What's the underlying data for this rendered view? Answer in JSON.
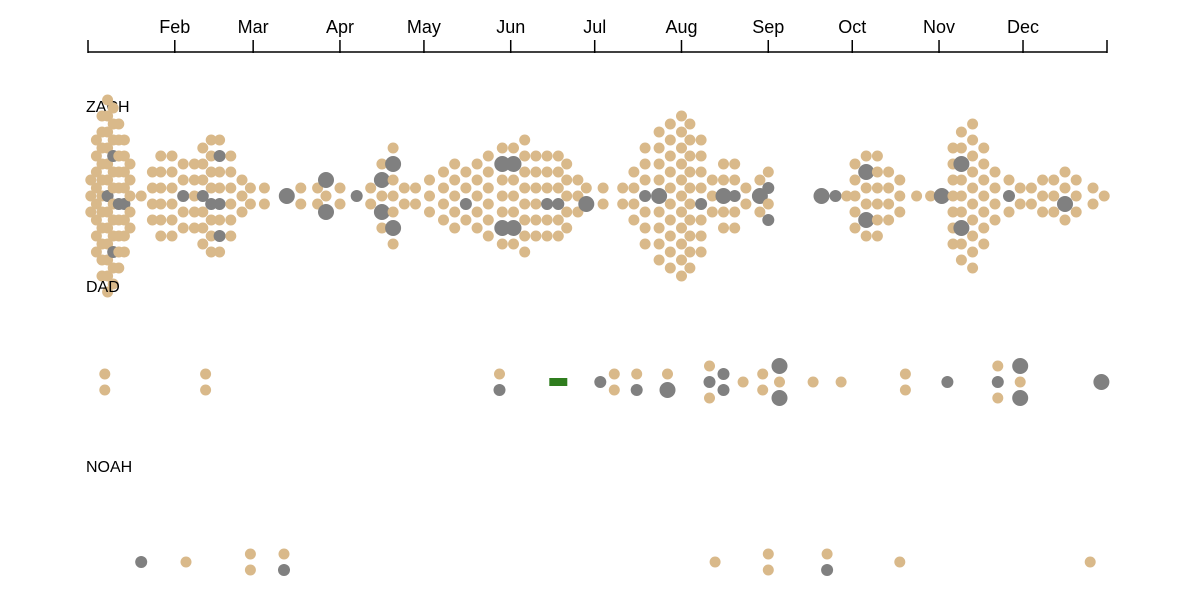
{
  "chart_data": {
    "type": "scatter",
    "x_axis": {
      "range": [
        "2023-01-01",
        "2023-12-31"
      ],
      "ticks": [
        {
          "date": "2023-02-01",
          "label": "Feb"
        },
        {
          "date": "2023-03-01",
          "label": "Mar"
        },
        {
          "date": "2023-04-01",
          "label": "Apr"
        },
        {
          "date": "2023-05-01",
          "label": "May"
        },
        {
          "date": "2023-06-01",
          "label": "Jun"
        },
        {
          "date": "2023-07-01",
          "label": "Jul"
        },
        {
          "date": "2023-08-01",
          "label": "Aug"
        },
        {
          "date": "2023-09-01",
          "label": "Sep"
        },
        {
          "date": "2023-10-01",
          "label": "Oct"
        },
        {
          "date": "2023-11-01",
          "label": "Nov"
        },
        {
          "date": "2023-12-01",
          "label": "Dec"
        }
      ]
    },
    "colors": {
      "tan": "#d9b98a",
      "gray": "#808080",
      "green": "#2f7d1e"
    },
    "rows": [
      {
        "label": "ZACH",
        "clusters": [
          {
            "date": "2023-01-02",
            "count": 3,
            "gray": 0
          },
          {
            "date": "2023-01-04",
            "count": 8,
            "gray": 0
          },
          {
            "date": "2023-01-06",
            "count": 11,
            "gray": 0
          },
          {
            "date": "2023-01-08",
            "count": 13,
            "gray": 1
          },
          {
            "date": "2023-01-10",
            "count": 12,
            "gray": 2
          },
          {
            "date": "2023-01-12",
            "count": 10,
            "gray": 1
          },
          {
            "date": "2023-01-14",
            "count": 8,
            "gray": 1
          },
          {
            "date": "2023-01-16",
            "count": 5,
            "gray": 0
          },
          {
            "date": "2023-01-20",
            "count": 1,
            "gray": 0
          },
          {
            "date": "2023-01-24",
            "count": 4,
            "gray": 0
          },
          {
            "date": "2023-01-27",
            "count": 6,
            "gray": 0
          },
          {
            "date": "2023-01-31",
            "count": 6,
            "gray": 0
          },
          {
            "date": "2023-02-04",
            "count": 5,
            "gray": 1
          },
          {
            "date": "2023-02-08",
            "count": 5,
            "gray": 0
          },
          {
            "date": "2023-02-11",
            "count": 7,
            "gray": 1
          },
          {
            "date": "2023-02-14",
            "count": 8,
            "gray": 1
          },
          {
            "date": "2023-02-17",
            "count": 8,
            "gray": 3
          },
          {
            "date": "2023-02-21",
            "count": 6,
            "gray": 0
          },
          {
            "date": "2023-02-25",
            "count": 3,
            "gray": 0
          },
          {
            "date": "2023-02-28",
            "count": 2,
            "gray": 0
          },
          {
            "date": "2023-03-05",
            "count": 2,
            "gray": 0
          },
          {
            "date": "2023-03-13",
            "count": 1,
            "gray": 1,
            "big": true
          },
          {
            "date": "2023-03-18",
            "count": 2,
            "gray": 0
          },
          {
            "date": "2023-03-24",
            "count": 2,
            "gray": 0
          },
          {
            "date": "2023-03-27",
            "count": 3,
            "gray": 2,
            "big": true
          },
          {
            "date": "2023-04-01",
            "count": 2,
            "gray": 0
          },
          {
            "date": "2023-04-07",
            "count": 1,
            "gray": 1
          },
          {
            "date": "2023-04-12",
            "count": 2,
            "gray": 0
          },
          {
            "date": "2023-04-16",
            "count": 5,
            "gray": 2,
            "big": true
          },
          {
            "date": "2023-04-20",
            "count": 7,
            "gray": 2,
            "big": true
          },
          {
            "date": "2023-04-24",
            "count": 2,
            "gray": 0
          },
          {
            "date": "2023-04-28",
            "count": 2,
            "gray": 0
          },
          {
            "date": "2023-05-03",
            "count": 3,
            "gray": 0
          },
          {
            "date": "2023-05-08",
            "count": 4,
            "gray": 0
          },
          {
            "date": "2023-05-12",
            "count": 5,
            "gray": 0
          },
          {
            "date": "2023-05-16",
            "count": 4,
            "gray": 1
          },
          {
            "date": "2023-05-20",
            "count": 5,
            "gray": 0
          },
          {
            "date": "2023-05-24",
            "count": 6,
            "gray": 0
          },
          {
            "date": "2023-05-29",
            "count": 7,
            "gray": 2,
            "big": true
          },
          {
            "date": "2023-06-02",
            "count": 7,
            "gray": 2,
            "big": true
          },
          {
            "date": "2023-06-06",
            "count": 8,
            "gray": 0
          },
          {
            "date": "2023-06-10",
            "count": 6,
            "gray": 0
          },
          {
            "date": "2023-06-14",
            "count": 6,
            "gray": 1
          },
          {
            "date": "2023-06-18",
            "count": 6,
            "gray": 1
          },
          {
            "date": "2023-06-21",
            "count": 5,
            "gray": 0
          },
          {
            "date": "2023-06-25",
            "count": 3,
            "gray": 0
          },
          {
            "date": "2023-06-28",
            "count": 2,
            "gray": 1,
            "big": true
          },
          {
            "date": "2023-07-04",
            "count": 2,
            "gray": 0
          },
          {
            "date": "2023-07-11",
            "count": 2,
            "gray": 0
          },
          {
            "date": "2023-07-15",
            "count": 4,
            "gray": 0
          },
          {
            "date": "2023-07-19",
            "count": 7,
            "gray": 1
          },
          {
            "date": "2023-07-24",
            "count": 9,
            "gray": 1,
            "big": true
          },
          {
            "date": "2023-07-28",
            "count": 10,
            "gray": 0
          },
          {
            "date": "2023-08-01",
            "count": 11,
            "gray": 0
          },
          {
            "date": "2023-08-04",
            "count": 10,
            "gray": 0
          },
          {
            "date": "2023-08-08",
            "count": 8,
            "gray": 1
          },
          {
            "date": "2023-08-12",
            "count": 3,
            "gray": 0
          },
          {
            "date": "2023-08-16",
            "count": 5,
            "gray": 1,
            "big": true
          },
          {
            "date": "2023-08-20",
            "count": 5,
            "gray": 1
          },
          {
            "date": "2023-08-24",
            "count": 2,
            "gray": 0
          },
          {
            "date": "2023-08-29",
            "count": 3,
            "gray": 1,
            "big": true
          },
          {
            "date": "2023-09-01",
            "count": 4,
            "gray": 2
          },
          {
            "date": "2023-09-20",
            "count": 1,
            "gray": 1,
            "big": true
          },
          {
            "date": "2023-09-25",
            "count": 1,
            "gray": 1
          },
          {
            "date": "2023-09-29",
            "count": 1,
            "gray": 0
          },
          {
            "date": "2023-10-02",
            "count": 5,
            "gray": 0
          },
          {
            "date": "2023-10-06",
            "count": 6,
            "gray": 2,
            "big": true
          },
          {
            "date": "2023-10-10",
            "count": 6,
            "gray": 0
          },
          {
            "date": "2023-10-14",
            "count": 4,
            "gray": 0
          },
          {
            "date": "2023-10-18",
            "count": 3,
            "gray": 0
          },
          {
            "date": "2023-10-24",
            "count": 1,
            "gray": 0
          },
          {
            "date": "2023-10-29",
            "count": 1,
            "gray": 0
          },
          {
            "date": "2023-11-02",
            "count": 1,
            "gray": 1,
            "big": true
          },
          {
            "date": "2023-11-06",
            "count": 7,
            "gray": 0
          },
          {
            "date": "2023-11-09",
            "count": 9,
            "gray": 2,
            "big": true
          },
          {
            "date": "2023-11-13",
            "count": 10,
            "gray": 0
          },
          {
            "date": "2023-11-17",
            "count": 7,
            "gray": 0
          },
          {
            "date": "2023-11-21",
            "count": 4,
            "gray": 0
          },
          {
            "date": "2023-11-26",
            "count": 3,
            "gray": 1
          },
          {
            "date": "2023-11-30",
            "count": 2,
            "gray": 0
          },
          {
            "date": "2023-12-04",
            "count": 2,
            "gray": 0
          },
          {
            "date": "2023-12-08",
            "count": 3,
            "gray": 0
          },
          {
            "date": "2023-12-12",
            "count": 3,
            "gray": 0
          },
          {
            "date": "2023-12-16",
            "count": 4,
            "gray": 1,
            "big": true
          },
          {
            "date": "2023-12-20",
            "count": 3,
            "gray": 0
          },
          {
            "date": "2023-12-26",
            "count": 2,
            "gray": 0
          },
          {
            "date": "2023-12-30",
            "count": 1,
            "gray": 0
          }
        ]
      },
      {
        "label": "DAD",
        "clusters": [
          {
            "date": "2023-01-07",
            "count": 2,
            "gray": 0
          },
          {
            "date": "2023-02-12",
            "count": 2,
            "gray": 0
          },
          {
            "date": "2023-05-28",
            "count": 2,
            "gray": 1
          },
          {
            "date": "2023-07-03",
            "count": 1,
            "gray": 1
          },
          {
            "date": "2023-07-08",
            "count": 2,
            "gray": 0
          },
          {
            "date": "2023-07-16",
            "count": 2,
            "gray": 1
          },
          {
            "date": "2023-07-27",
            "count": 2,
            "gray": 1,
            "big": true
          },
          {
            "date": "2023-08-11",
            "count": 3,
            "gray": 1
          },
          {
            "date": "2023-08-16",
            "count": 2,
            "gray": 2
          },
          {
            "date": "2023-08-23",
            "count": 1,
            "gray": 0
          },
          {
            "date": "2023-08-30",
            "count": 2,
            "gray": 0
          },
          {
            "date": "2023-09-05",
            "count": 3,
            "gray": 2,
            "big": true
          },
          {
            "date": "2023-09-17",
            "count": 1,
            "gray": 0
          },
          {
            "date": "2023-09-27",
            "count": 1,
            "gray": 0
          },
          {
            "date": "2023-10-20",
            "count": 2,
            "gray": 0
          },
          {
            "date": "2023-11-04",
            "count": 1,
            "gray": 1
          },
          {
            "date": "2023-11-22",
            "count": 3,
            "gray": 1
          },
          {
            "date": "2023-11-30",
            "count": 3,
            "gray": 2,
            "big": true
          },
          {
            "date": "2023-12-29",
            "count": 1,
            "gray": 1,
            "big": true
          }
        ],
        "bars": [
          {
            "date": "2023-06-18"
          }
        ]
      },
      {
        "label": "NOAH",
        "clusters": [
          {
            "date": "2023-01-20",
            "count": 1,
            "gray": 1
          },
          {
            "date": "2023-02-05",
            "count": 1,
            "gray": 0
          },
          {
            "date": "2023-02-28",
            "count": 2,
            "gray": 0
          },
          {
            "date": "2023-03-12",
            "count": 2,
            "gray": 1
          },
          {
            "date": "2023-08-13",
            "count": 1,
            "gray": 0
          },
          {
            "date": "2023-09-01",
            "count": 2,
            "gray": 0
          },
          {
            "date": "2023-09-22",
            "count": 2,
            "gray": 1
          },
          {
            "date": "2023-10-18",
            "count": 1,
            "gray": 0
          },
          {
            "date": "2023-12-25",
            "count": 1,
            "gray": 0
          }
        ]
      }
    ]
  }
}
